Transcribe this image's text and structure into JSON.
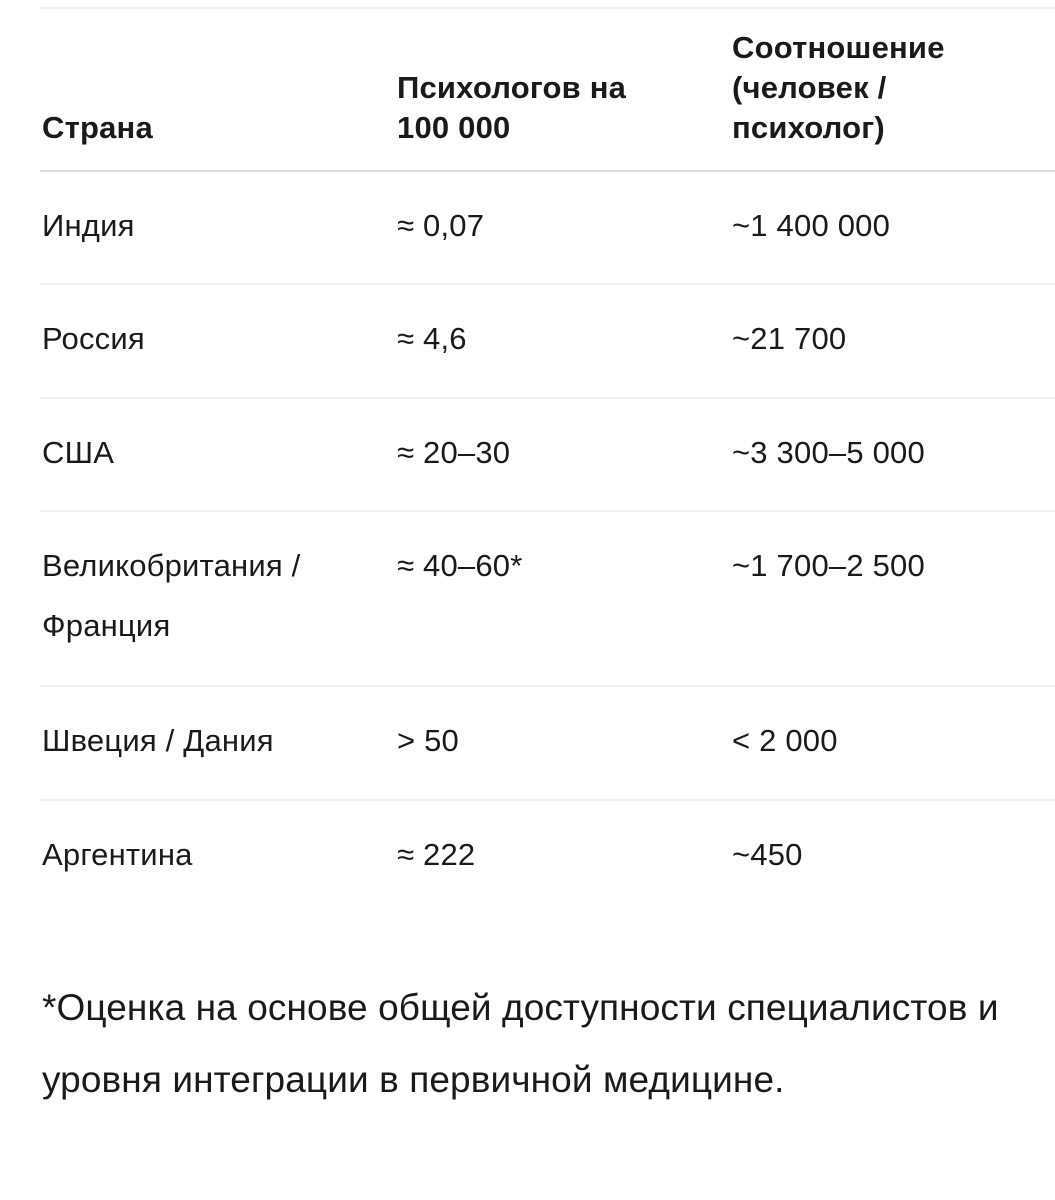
{
  "table": {
    "headers": {
      "country": "Страна",
      "psychologists": "Психологов на 100 000",
      "ratio": "Соотношение (человек / психолог)"
    },
    "rows": [
      {
        "country": "Индия",
        "psychologists": "≈ 0,07",
        "ratio": "~1 400 000"
      },
      {
        "country": "Россия",
        "psychologists": "≈ 4,6",
        "ratio": "~21 700"
      },
      {
        "country": "США",
        "psychologists": "≈ 20–30",
        "ratio": "~3 300–5 000"
      },
      {
        "country": "Великобритания / Франция",
        "psychologists": "≈ 40–60*",
        "ratio": "~1 700–2 500"
      },
      {
        "country": "Швеция / Дания",
        "psychologists": "> 50",
        "ratio": "< 2 000"
      },
      {
        "country": "Аргентина",
        "psychologists": "≈ 222",
        "ratio": "~450"
      }
    ]
  },
  "footnote": "*Оценка на основе общей доступности специалистов и уровня интеграции в первичной медицине."
}
